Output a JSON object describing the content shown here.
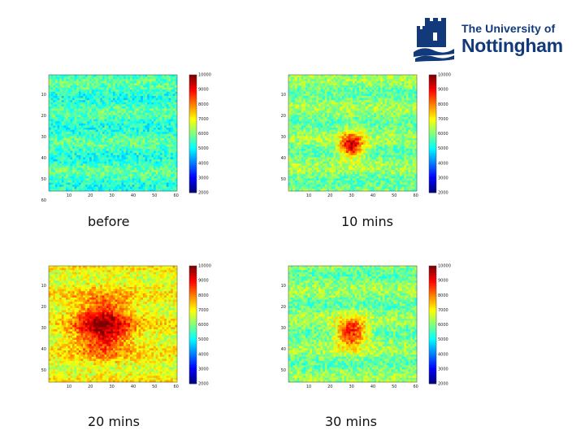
{
  "logo": {
    "line1": "The University of",
    "line2": "Nottingham",
    "color": "#123a7a"
  },
  "chart_data": [
    {
      "type": "heatmap",
      "title": "before",
      "grid": [
        60,
        55
      ],
      "xticks": [
        "10",
        "20",
        "30",
        "40",
        "50",
        "60"
      ],
      "yticks": [
        "10",
        "20",
        "30",
        "40",
        "50",
        "60"
      ],
      "colorbar": {
        "min": 2000,
        "max": 10000,
        "ticks": [
          "10000",
          "9000",
          "8000",
          "7000",
          "6000",
          "5000",
          "4000",
          "3000",
          "2000"
        ]
      },
      "baseline": 5500,
      "hotspots": []
    },
    {
      "type": "heatmap",
      "title": "10 mins",
      "grid": [
        60,
        55
      ],
      "xticks": [
        "10",
        "20",
        "30",
        "40",
        "50",
        "60"
      ],
      "yticks": [
        "10",
        "20",
        "30",
        "40",
        "50"
      ],
      "colorbar": {
        "min": 2000,
        "max": 10000,
        "ticks": [
          "10000",
          "9000",
          "8000",
          "7000",
          "6000",
          "5000",
          "4000",
          "3000",
          "2000"
        ]
      },
      "baseline": 6000,
      "hotspots": [
        {
          "x": 29,
          "y": 33,
          "peak": 9500,
          "spread": 4
        }
      ]
    },
    {
      "type": "heatmap",
      "title": "20 mins",
      "grid": [
        60,
        55
      ],
      "xticks": [
        "10",
        "20",
        "30",
        "40",
        "50",
        "60"
      ],
      "yticks": [
        "10",
        "20",
        "30",
        "40",
        "50"
      ],
      "colorbar": {
        "min": 2000,
        "max": 10000,
        "ticks": [
          "10000",
          "9000",
          "8000",
          "7000",
          "6000",
          "5000",
          "4000",
          "3000",
          "2000"
        ]
      },
      "baseline": 6900,
      "hotspots": [
        {
          "x": 25,
          "y": 28,
          "peak": 9800,
          "spread": 9
        }
      ]
    },
    {
      "type": "heatmap",
      "title": "30 mins",
      "grid": [
        60,
        55
      ],
      "xticks": [
        "10",
        "20",
        "30",
        "40",
        "50",
        "60"
      ],
      "yticks": [
        "10",
        "20",
        "30",
        "40",
        "50"
      ],
      "colorbar": {
        "min": 2000,
        "max": 10000,
        "ticks": [
          "10000",
          "9000",
          "8000",
          "7000",
          "6000",
          "5000",
          "4000",
          "3000",
          "2000"
        ]
      },
      "baseline": 6000,
      "hotspots": [
        {
          "x": 29,
          "y": 31,
          "peak": 9000,
          "spread": 5
        }
      ]
    }
  ]
}
